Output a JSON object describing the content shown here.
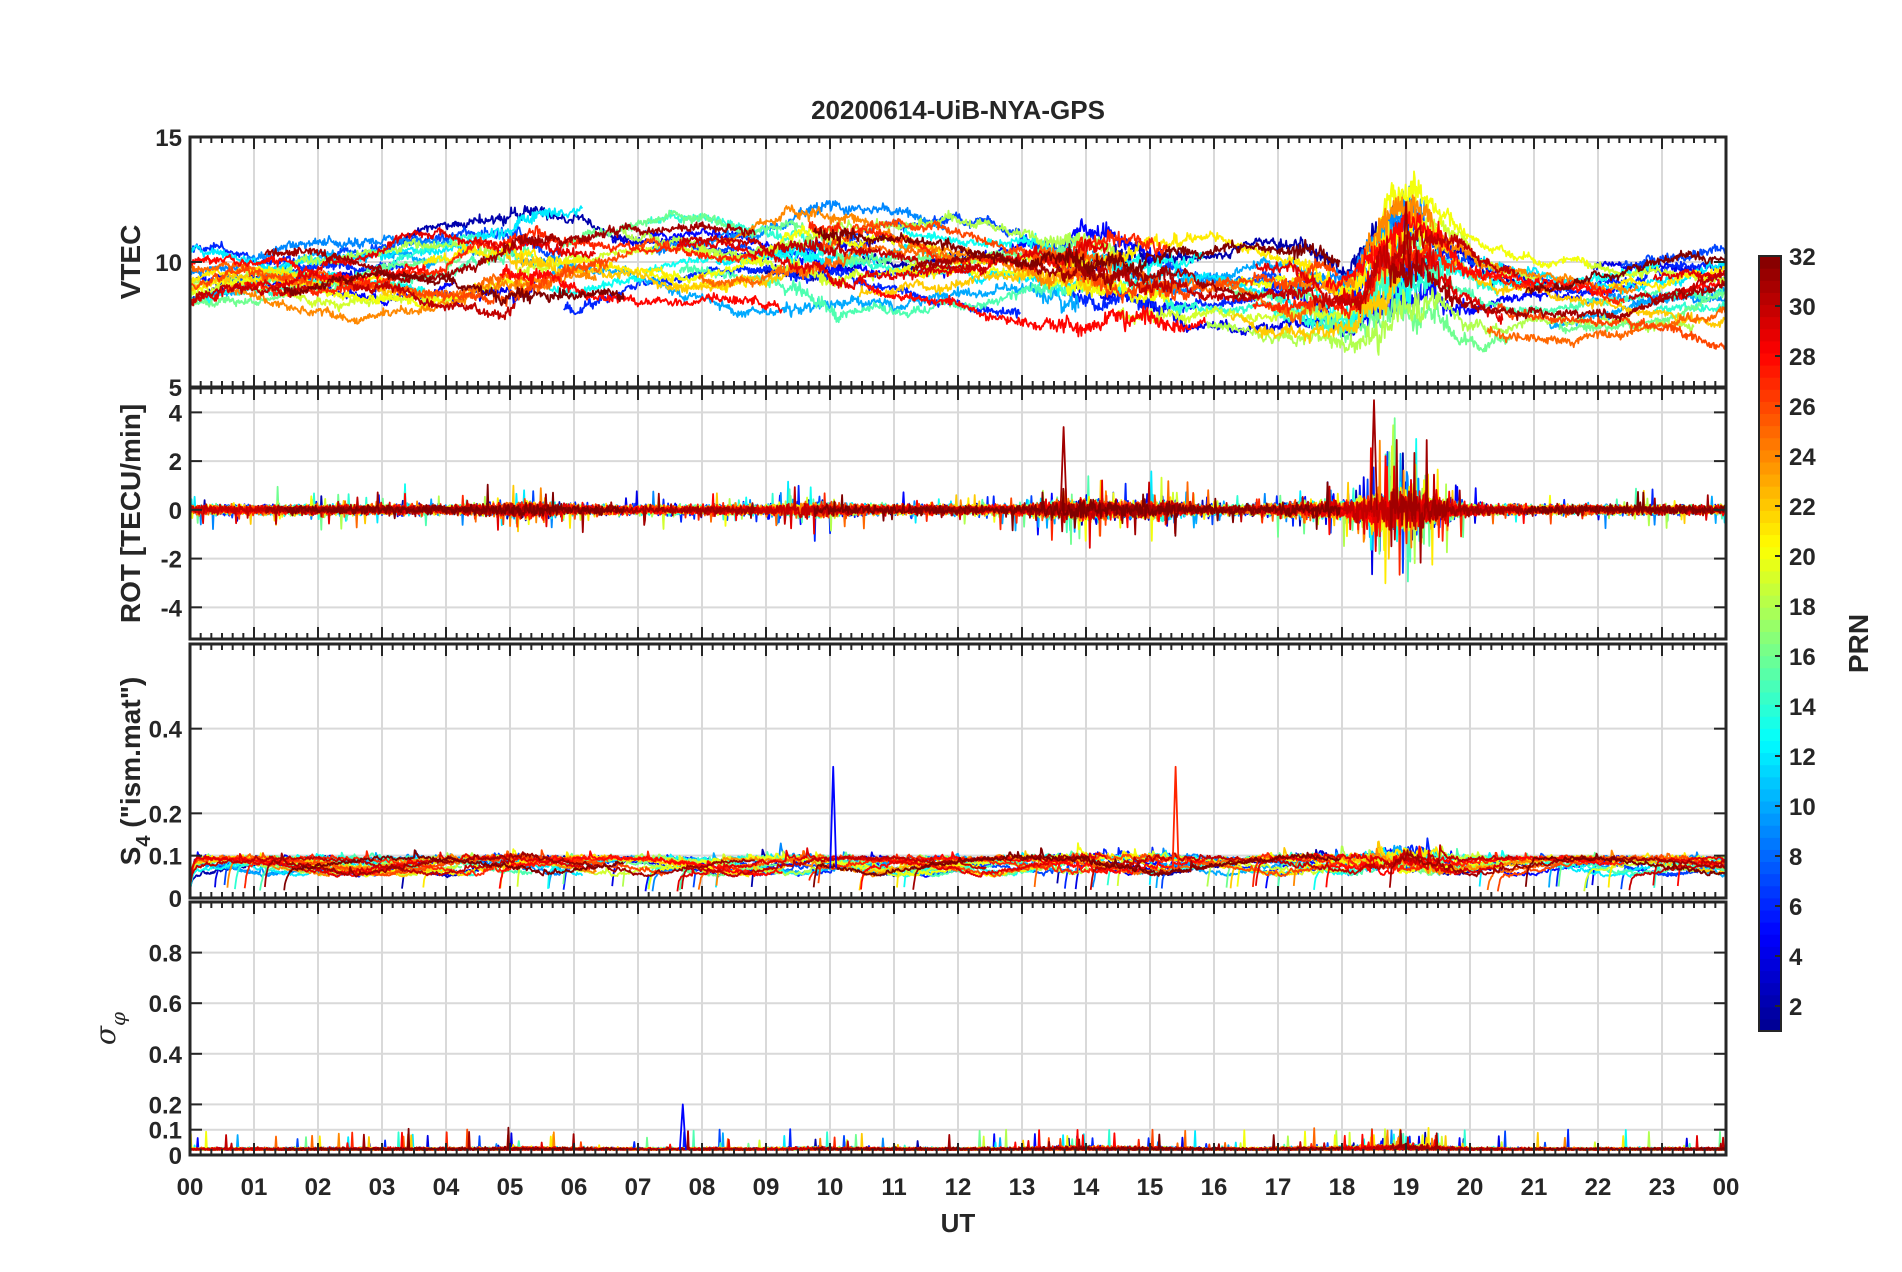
{
  "chart_data": {
    "type": "line",
    "title": "20200614-UiB-NYA-GPS",
    "xlabel": "UT",
    "xlim": [
      0,
      24
    ],
    "x_tick_labels": [
      "00",
      "01",
      "02",
      "03",
      "04",
      "05",
      "06",
      "07",
      "08",
      "09",
      "10",
      "11",
      "12",
      "13",
      "14",
      "15",
      "16",
      "17",
      "18",
      "19",
      "20",
      "21",
      "22",
      "23",
      "00"
    ],
    "panels": [
      {
        "name": "vtec",
        "ylabel": "VTEC",
        "ylim": [
          5,
          15
        ],
        "y_ticks": [
          5,
          10,
          15
        ],
        "y_tick_labels": [
          "5",
          "10",
          "15"
        ],
        "description": "Vertical TEC per satellite, mostly 6-12 TECU; enhancement near 18-20 UT"
      },
      {
        "name": "rot",
        "ylabel": "ROT [TECU/min]",
        "ylim": [
          -5.3,
          5
        ],
        "y_ticks": [
          -4,
          -2,
          0,
          2,
          4
        ],
        "y_tick_labels": [
          "-4",
          "-2",
          "0",
          "2",
          "4"
        ],
        "description": "Rate of TEC, near 0 with spikes up to about 4.5 and -3.5 around 18-20 UT"
      },
      {
        "name": "s4",
        "ylabel": "S4 (\"ism.mat\")",
        "ylabel_main": "S",
        "ylabel_sub": "4",
        "ylabel_rest": " (\"ism.mat\")",
        "ylim": [
          0,
          0.6
        ],
        "y_ticks": [
          0,
          0.1,
          0.2,
          0.4
        ],
        "y_tick_labels": [
          "0",
          "0.1",
          "0.2",
          "0.4"
        ],
        "description": "Amplitude scintillation index, baseline 0.05-0.1, peaks up to 0.3"
      },
      {
        "name": "sigma_phi",
        "ylabel": "σ φ",
        "ylabel_main": "σ",
        "ylabel_sub": "φ",
        "ylim": [
          0,
          1
        ],
        "y_ticks": [
          0,
          0.1,
          0.2,
          0.4,
          0.6,
          0.8
        ],
        "y_tick_labels": [
          "0",
          "0.1",
          "0.2",
          "0.4",
          "0.6",
          "0.8"
        ],
        "description": "Phase scintillation index, near 0.02, spikes to ~0.2 at 07:40 and ~0.15 near 18:40-19:40"
      }
    ],
    "colorbar": {
      "label": "PRN",
      "range": [
        1,
        32
      ],
      "tick_values": [
        2,
        4,
        6,
        8,
        10,
        12,
        14,
        16,
        18,
        20,
        22,
        24,
        26,
        28,
        30,
        32
      ],
      "tick_labels": [
        "2",
        "4",
        "6",
        "8",
        "10",
        "12",
        "14",
        "16",
        "18",
        "20",
        "22",
        "24",
        "26",
        "28",
        "30",
        "32"
      ],
      "colormap": [
        "#00008f",
        "#0000ff",
        "#0080ff",
        "#00ffff",
        "#80ff80",
        "#ffff00",
        "#ff8000",
        "#ff0000",
        "#800000"
      ]
    },
    "events": [
      {
        "time_ut": 7.7,
        "panel": "sigma_phi",
        "value": 0.2
      },
      {
        "time_ut": 13.65,
        "panel": "rot",
        "value": 3.4
      },
      {
        "time_ut": 18.5,
        "panel": "rot",
        "value": 4.5
      },
      {
        "time_ut": 19.0,
        "panel": "vtec",
        "value": 12.4
      },
      {
        "time_ut": 10.05,
        "panel": "s4",
        "value": 0.31
      },
      {
        "time_ut": 15.4,
        "panel": "s4",
        "value": 0.31
      }
    ]
  }
}
